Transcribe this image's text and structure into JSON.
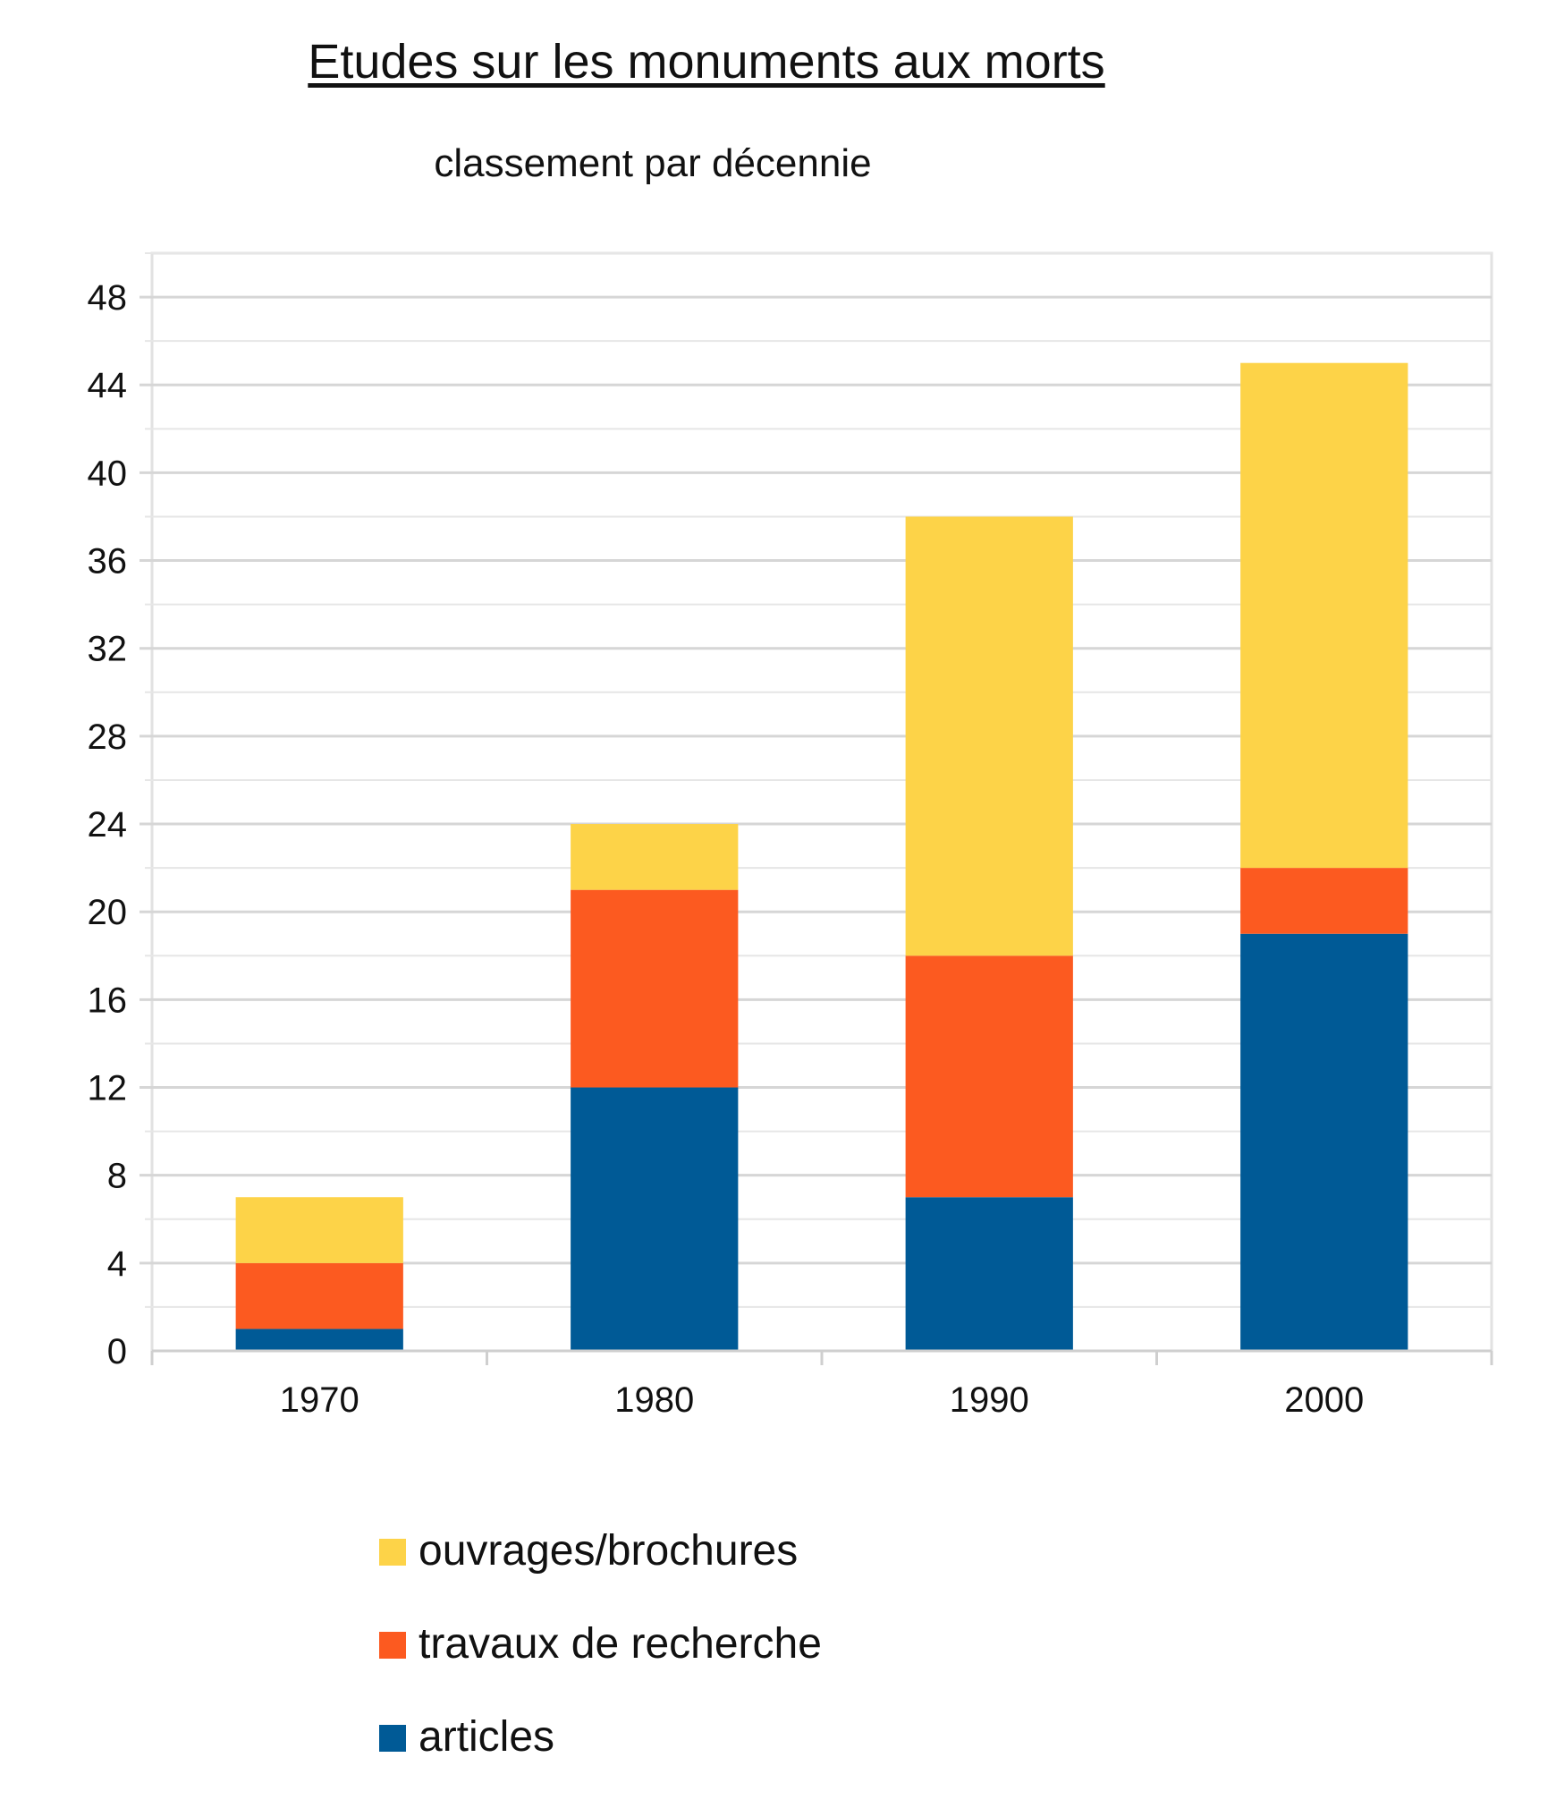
{
  "chart_data": {
    "type": "bar",
    "stacked": true,
    "title": "Etudes sur les monuments aux morts",
    "subtitle": "classement par décennie",
    "categories": [
      "1970",
      "1980",
      "1990",
      "2000"
    ],
    "series": [
      {
        "name": "articles",
        "values": [
          1,
          12,
          7,
          19
        ],
        "color": "#005a96"
      },
      {
        "name": "travaux de recherche",
        "values": [
          3,
          9,
          11,
          3
        ],
        "color": "#fc5a20"
      },
      {
        "name": "ouvrages/brochures",
        "values": [
          3,
          3,
          20,
          23
        ],
        "color": "#fdd348"
      }
    ],
    "ylim": [
      0,
      50
    ],
    "yticks": [
      "0",
      "4",
      "8",
      "12",
      "16",
      "20",
      "24",
      "28",
      "32",
      "36",
      "40",
      "44",
      "48"
    ],
    "grid": true,
    "legend_position": "bottom"
  }
}
